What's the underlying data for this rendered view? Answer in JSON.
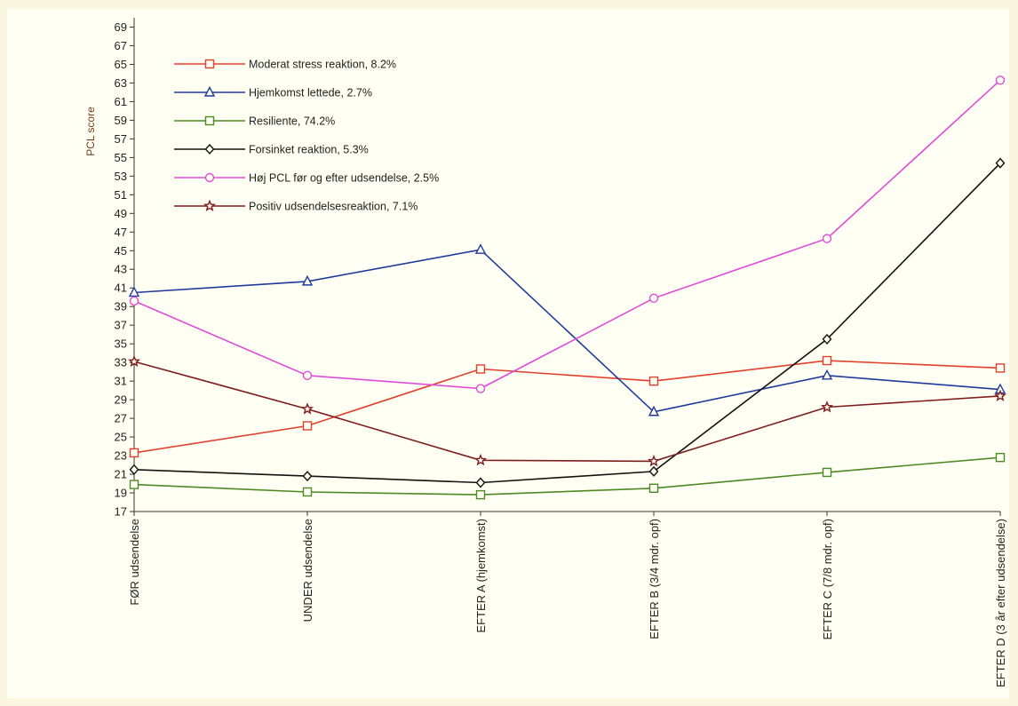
{
  "chart_data": {
    "type": "line",
    "title": "",
    "xlabel": "",
    "ylabel": "PCL score",
    "ylim": [
      17,
      70
    ],
    "yticks": [
      17,
      19,
      21,
      23,
      25,
      27,
      29,
      31,
      33,
      35,
      37,
      39,
      41,
      43,
      45,
      47,
      49,
      51,
      53,
      55,
      57,
      59,
      61,
      63,
      65,
      67,
      69
    ],
    "categories": [
      "FØR udsendelse",
      "UNDER udsendelse",
      "EFTER A (hjemkomst)",
      "EFTER B (3/4 mdr. opf)",
      "EFTER C (7/8 mdr. opf)",
      "EFTER D (3 år efter udsendelse)"
    ],
    "legend_position": "top-left",
    "grid": false,
    "series": [
      {
        "name": "Moderat stress reaktion, 8.2%",
        "color": "#e0402c",
        "marker": "square",
        "values": [
          23.3,
          26.2,
          32.3,
          31.0,
          33.2,
          32.4
        ]
      },
      {
        "name": "Hjemkomst lettede, 2.7%",
        "color": "#1f3a9e",
        "marker": "triangle",
        "values": [
          40.5,
          41.7,
          45.1,
          27.7,
          31.6,
          30.1
        ]
      },
      {
        "name": "Resiliente, 74.2%",
        "color": "#4e8a22",
        "marker": "square",
        "values": [
          19.9,
          19.1,
          18.8,
          19.5,
          21.2,
          22.8
        ]
      },
      {
        "name": "Forsinket reaktion, 5.3%",
        "color": "#111111",
        "marker": "diamond",
        "values": [
          21.5,
          20.8,
          20.1,
          21.3,
          35.5,
          54.4
        ]
      },
      {
        "name": "Høj PCL før og efter udsendelse, 2.5%",
        "color": "#e04bd8",
        "marker": "circle",
        "values": [
          39.6,
          31.6,
          30.2,
          39.9,
          46.3,
          63.3
        ]
      },
      {
        "name": "Positiv udsendelsesreaktion, 7.1%",
        "color": "#7e1d1d",
        "marker": "star",
        "values": [
          33.1,
          28.0,
          22.5,
          22.4,
          28.2,
          29.4
        ]
      }
    ]
  }
}
